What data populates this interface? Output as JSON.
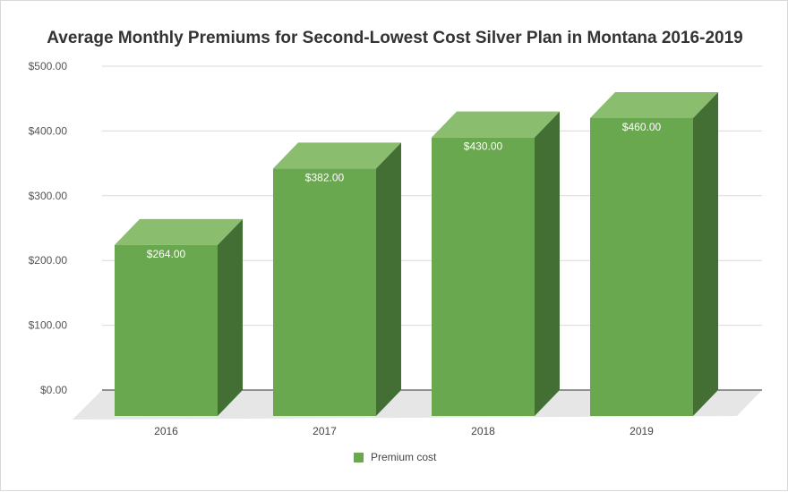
{
  "chart_data": {
    "type": "bar",
    "title": "Average Monthly Premiums for Second-Lowest Cost Silver Plan in Montana 2016-2019",
    "categories": [
      "2016",
      "2017",
      "2018",
      "2019"
    ],
    "series": [
      {
        "name": "Premium cost",
        "values": [
          264,
          382,
          430,
          460
        ],
        "labels": [
          "$264.00",
          "$382.00",
          "$430.00",
          "$460.00"
        ],
        "color": "#6aa84f"
      }
    ],
    "ylim": [
      0,
      500
    ],
    "yticks": [
      0,
      100,
      200,
      300,
      400,
      500
    ],
    "ytick_labels": [
      "$0.00",
      "$100.00",
      "$200.00",
      "$300.00",
      "$400.00",
      "$500.00"
    ],
    "xlabel": "",
    "ylabel": "",
    "grid": true,
    "legend": "bottom",
    "style": "3d",
    "colors": {
      "front": "#6aa84f",
      "top": "#8bbd6e",
      "side": "#436f34",
      "floor": "#e6e6e6",
      "grid": "#d9d9d9",
      "axis": "#333333"
    }
  }
}
